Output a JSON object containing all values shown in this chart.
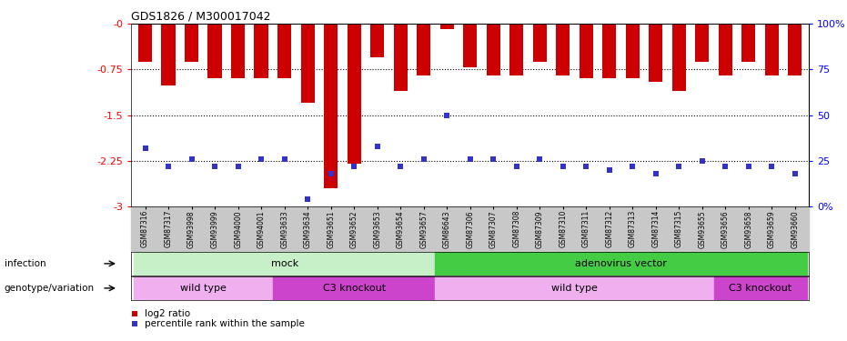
{
  "title": "GDS1826 / M300017042",
  "samples": [
    "GSM87316",
    "GSM87317",
    "GSM93998",
    "GSM93999",
    "GSM94000",
    "GSM94001",
    "GSM93633",
    "GSM93634",
    "GSM93651",
    "GSM93652",
    "GSM93653",
    "GSM93654",
    "GSM93657",
    "GSM86643",
    "GSM87306",
    "GSM87307",
    "GSM87308",
    "GSM87309",
    "GSM87310",
    "GSM87311",
    "GSM87312",
    "GSM87313",
    "GSM87314",
    "GSM87315",
    "GSM93655",
    "GSM93656",
    "GSM93658",
    "GSM93659",
    "GSM93660"
  ],
  "log2_ratio": [
    -0.62,
    -1.02,
    -0.62,
    -0.9,
    -0.9,
    -0.9,
    -0.9,
    -1.3,
    -2.7,
    -2.3,
    -0.55,
    -1.1,
    -0.85,
    -0.08,
    -0.72,
    -0.85,
    -0.85,
    -0.62,
    -0.85,
    -0.9,
    -0.9,
    -0.9,
    -0.95,
    -1.1,
    -0.62,
    -0.85,
    -0.62,
    -0.85,
    -0.85
  ],
  "percentile_rank": [
    32,
    22,
    26,
    22,
    22,
    26,
    26,
    4,
    18,
    22,
    33,
    22,
    26,
    50,
    26,
    26,
    22,
    26,
    22,
    22,
    20,
    22,
    18,
    22,
    25,
    22,
    22,
    22,
    18
  ],
  "ylim_left": [
    -3,
    0
  ],
  "ylim_right": [
    0,
    100
  ],
  "yticks_left": [
    0,
    -0.75,
    -1.5,
    -2.25,
    -3
  ],
  "yticks_right": [
    0,
    25,
    50,
    75,
    100
  ],
  "ytick_labels_left": [
    "-0",
    "-0.75",
    "-1.5",
    "-2.25",
    "-3"
  ],
  "ytick_labels_right": [
    "0%",
    "25",
    "50",
    "75",
    "100%"
  ],
  "bar_color": "#cc0000",
  "marker_color": "#3333cc",
  "plot_bg_color": "#ffffff",
  "tick_bg_color": "#c8c8c8",
  "infection_groups": [
    {
      "label": "mock",
      "start": 0,
      "end": 13,
      "color": "#c8f0c8"
    },
    {
      "label": "adenovirus vector",
      "start": 13,
      "end": 29,
      "color": "#44cc44"
    }
  ],
  "genotype_groups": [
    {
      "label": "wild type",
      "start": 0,
      "end": 6,
      "color": "#f0b0f0"
    },
    {
      "label": "C3 knockout",
      "start": 6,
      "end": 13,
      "color": "#cc44cc"
    },
    {
      "label": "wild type",
      "start": 13,
      "end": 25,
      "color": "#f0b0f0"
    },
    {
      "label": "C3 knockout",
      "start": 25,
      "end": 29,
      "color": "#cc44cc"
    }
  ],
  "infection_label": "infection",
  "genotype_label": "genotype/variation",
  "legend_items": [
    {
      "color": "#cc0000",
      "label": "log2 ratio"
    },
    {
      "color": "#3333cc",
      "label": "percentile rank within the sample"
    }
  ],
  "hline_values": [
    -0.75,
    -1.5,
    -2.25
  ],
  "bar_width": 0.6,
  "marker_size": 4
}
